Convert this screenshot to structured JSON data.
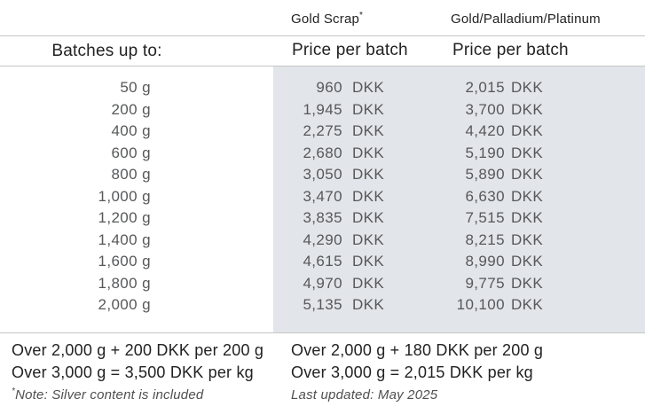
{
  "colors": {
    "band": "#e2e5e9",
    "rule": "#c6c6c6",
    "text_dark": "#222222",
    "text_body": "#56585a",
    "text_note": "#4f4f4f"
  },
  "header": {
    "batches_label": "Batches up to:",
    "columns": [
      {
        "title": "Gold Scrap",
        "note_mark": "*",
        "subtitle": "Price per batch"
      },
      {
        "title": "Gold/Palladium/Platinum",
        "note_mark": "",
        "subtitle": "Price per batch"
      }
    ]
  },
  "currency": "DKK",
  "rows": [
    {
      "batch": "50 g",
      "gold_scrap": "960",
      "gpp": "2,015"
    },
    {
      "batch": "200 g",
      "gold_scrap": "1,945",
      "gpp": "3,700"
    },
    {
      "batch": "400 g",
      "gold_scrap": "2,275",
      "gpp": "4,420"
    },
    {
      "batch": "600 g",
      "gold_scrap": "2,680",
      "gpp": "5,190"
    },
    {
      "batch": "800 g",
      "gold_scrap": "3,050",
      "gpp": "5,890"
    },
    {
      "batch": "1,000 g",
      "gold_scrap": "3,470",
      "gpp": "6,630"
    },
    {
      "batch": "1,200 g",
      "gold_scrap": "3,835",
      "gpp": "7,515"
    },
    {
      "batch": "1,400 g",
      "gold_scrap": "4,290",
      "gpp": "8,215"
    },
    {
      "batch": "1,600 g",
      "gold_scrap": "4,615",
      "gpp": "8,990"
    },
    {
      "batch": "1,800 g",
      "gold_scrap": "4,970",
      "gpp": "9,775"
    },
    {
      "batch": "2,000 g",
      "gold_scrap": "5,135",
      "gpp": "10,100"
    }
  ],
  "footer": {
    "left": [
      "Over 2,000 g + 200 DKK per 200 g",
      "Over 3,000 g = 3,500 DKK per kg"
    ],
    "right": [
      "Over 2,000 g + 180 DKK per 200 g",
      "Over 3,000 g = 2,015 DKK per kg"
    ],
    "note_mark": "*",
    "note": "Note: Silver content is included",
    "last_updated": "Last updated: May 2025"
  }
}
